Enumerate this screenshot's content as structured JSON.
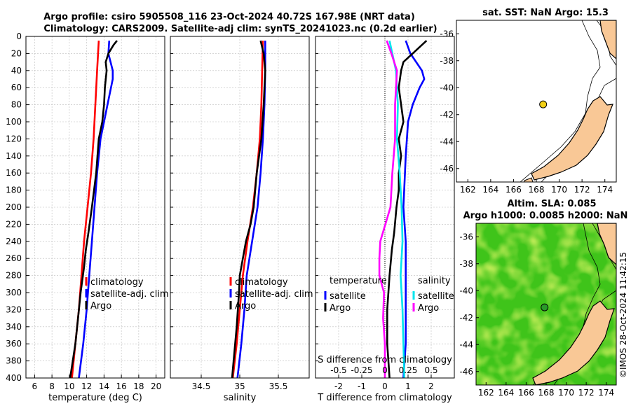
{
  "figure": {
    "title_line1": "Argo profile: csiro 5905508_116 23-Oct-2024 40.72S 167.98E (NRT data)",
    "title_line2": "Climatology: CARS2009. Satellite-adj clim: synTS_20241023.nc (0.2d earlier)",
    "credit": "©IMOS 28-Oct-2024 11:42:15"
  },
  "colors": {
    "climatology": "#ff0000",
    "satellite": "#0000ff",
    "argo": "#000000",
    "cyan": "#00e5ee",
    "magenta": "#ff00ff",
    "land": "#f9c896",
    "grid": "#bdbdbd"
  },
  "chart_data": [
    {
      "type": "line",
      "id": "temperature",
      "xlabel": "temperature (deg C)",
      "ylabel": "",
      "xlim": [
        5,
        21
      ],
      "ylim": [
        400,
        0
      ],
      "xticks": [
        "6",
        "8",
        "10",
        "12",
        "14",
        "16",
        "18",
        "20"
      ],
      "yticks": [
        "0",
        "20",
        "40",
        "60",
        "80",
        "100",
        "120",
        "140",
        "160",
        "180",
        "200",
        "220",
        "240",
        "260",
        "280",
        "300",
        "320",
        "340",
        "360",
        "380",
        "400"
      ],
      "legend": [
        "climatology",
        "satellite-adj. clim",
        "Argo"
      ],
      "series": [
        {
          "name": "climatology",
          "depth": [
            5,
            40,
            80,
            120,
            160,
            200,
            240,
            280,
            320,
            360,
            400
          ],
          "values": [
            13.4,
            13.2,
            13.0,
            12.8,
            12.5,
            12.1,
            11.7,
            11.4,
            11.1,
            10.7,
            10.3
          ]
        },
        {
          "name": "satellite-adj. clim",
          "depth": [
            5,
            20,
            40,
            50,
            60,
            80,
            100,
            120,
            160,
            200,
            240,
            280,
            320,
            360,
            400
          ],
          "values": [
            14.6,
            14.5,
            15.0,
            15.0,
            14.8,
            14.4,
            14.0,
            13.6,
            13.2,
            12.9,
            12.6,
            12.3,
            12.0,
            11.6,
            11.1
          ]
        },
        {
          "name": "Argo",
          "depth": [
            5,
            10,
            20,
            30,
            40,
            60,
            80,
            100,
            120,
            160,
            200,
            230,
            250,
            270,
            300,
            330,
            360,
            400
          ],
          "values": [
            15.5,
            15.1,
            14.5,
            14.2,
            14.3,
            14.1,
            14.0,
            13.8,
            13.4,
            13.1,
            12.6,
            12.2,
            11.9,
            11.7,
            11.3,
            11.0,
            10.7,
            10.1
          ]
        }
      ]
    },
    {
      "type": "line",
      "id": "salinity",
      "xlabel": "salinity",
      "ylabel": "",
      "xlim": [
        34.1,
        35.9
      ],
      "ylim": [
        400,
        0
      ],
      "xticks": [
        "34.5",
        "35",
        "35.5"
      ],
      "legend": [
        "climatology",
        "satellite-adj. clim",
        "Argo"
      ],
      "series": [
        {
          "name": "climatology",
          "depth": [
            5,
            40,
            80,
            120,
            160,
            200,
            240,
            280,
            320,
            360,
            400
          ],
          "values": [
            35.3,
            35.29,
            35.28,
            35.26,
            35.22,
            35.17,
            35.1,
            35.04,
            35.0,
            34.96,
            34.91
          ]
        },
        {
          "name": "satellite-adj. clim",
          "depth": [
            5,
            40,
            80,
            120,
            160,
            200,
            240,
            280,
            320,
            360,
            400
          ],
          "values": [
            35.33,
            35.33,
            35.32,
            35.3,
            35.27,
            35.23,
            35.16,
            35.09,
            35.06,
            35.02,
            34.97
          ]
        },
        {
          "name": "Argo",
          "depth": [
            5,
            20,
            40,
            80,
            120,
            160,
            200,
            220,
            240,
            260,
            280,
            300,
            340,
            380,
            400
          ],
          "values": [
            35.27,
            35.31,
            35.33,
            35.31,
            35.28,
            35.22,
            35.18,
            35.14,
            35.08,
            35.04,
            35.0,
            34.99,
            34.96,
            34.92,
            34.9
          ]
        }
      ]
    },
    {
      "type": "line",
      "id": "difference",
      "xlabel": "T difference from climatology",
      "xlabel_top": "S difference from climatology",
      "xlim": [
        -3,
        3
      ],
      "ylim": [
        400,
        0
      ],
      "xticks": [
        "-2",
        "-1",
        "0",
        "1",
        "2"
      ],
      "xticks_top": [
        "-0.5",
        "-0.25",
        "0",
        "0.25",
        "0.5"
      ],
      "legend_left_title": "temperature",
      "legend_right_title": "salinity",
      "legend": [
        "satellite",
        "Argo",
        "satellite",
        "Argo"
      ],
      "series": [
        {
          "name": "temperature satellite",
          "depth": [
            5,
            20,
            40,
            50,
            60,
            80,
            100,
            140,
            200,
            240,
            280,
            320,
            360,
            400
          ],
          "values": [
            0.9,
            1.1,
            1.6,
            1.7,
            1.5,
            1.2,
            1.0,
            0.9,
            0.8,
            0.9,
            0.9,
            0.9,
            0.9,
            0.8
          ]
        },
        {
          "name": "temperature Argo",
          "depth": [
            5,
            10,
            20,
            30,
            40,
            60,
            80,
            100,
            120,
            140,
            160,
            180,
            200,
            230,
            250,
            280,
            320,
            360,
            400
          ],
          "values": [
            1.8,
            1.6,
            1.2,
            0.8,
            0.7,
            0.6,
            0.7,
            0.8,
            0.6,
            0.7,
            0.6,
            0.6,
            0.5,
            0.4,
            0.3,
            0.2,
            0.1,
            0.1,
            0.2
          ]
        },
        {
          "name": "salinity satellite",
          "depth": [
            5,
            40,
            80,
            120,
            160,
            200,
            240,
            280,
            320,
            360,
            400
          ],
          "values": [
            0.05,
            0.12,
            0.14,
            0.13,
            0.16,
            0.18,
            0.19,
            0.17,
            0.19,
            0.2,
            0.21
          ]
        },
        {
          "name": "salinity Argo",
          "depth": [
            5,
            20,
            40,
            80,
            120,
            160,
            200,
            240,
            260,
            280,
            300,
            330,
            360,
            400
          ],
          "values": [
            0.02,
            0.07,
            0.13,
            0.11,
            0.11,
            0.08,
            0.06,
            -0.05,
            -0.06,
            -0.06,
            -0.01,
            -0.02,
            0.0,
            0.0
          ]
        }
      ]
    },
    {
      "type": "map",
      "id": "sst-map",
      "title": "sat. SST: NaN Argo: 15.3",
      "lon_range": [
        161,
        175
      ],
      "lat_range": [
        -47,
        -35
      ],
      "xticks": [
        "162",
        "164",
        "166",
        "168",
        "170",
        "172",
        "174"
      ],
      "yticks": [
        "-36",
        "-38",
        "-40",
        "-42",
        "-44",
        "-46"
      ],
      "argo_position": {
        "lon": 167.98,
        "lat": -40.72
      }
    },
    {
      "type": "map",
      "id": "sla-map",
      "title_line1": "Altim. SLA: 0.085",
      "title_line2": "Argo h1000: 0.0085 h2000: NaN",
      "lon_range": [
        161,
        175
      ],
      "lat_range": [
        -47,
        -35
      ],
      "xticks": [
        "162",
        "164",
        "166",
        "168",
        "170",
        "172",
        "174"
      ],
      "yticks": [
        "-36",
        "-38",
        "-40",
        "-42",
        "-44",
        "-46"
      ],
      "argo_position": {
        "lon": 167.98,
        "lat": -40.72
      }
    }
  ]
}
